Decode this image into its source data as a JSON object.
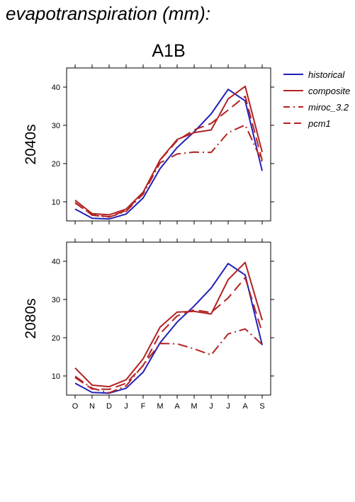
{
  "figure": {
    "title": "evapotranspiration (mm):"
  },
  "colors": {
    "historical": "#2020b8",
    "scenario": "#b22222"
  },
  "chart_data": [
    {
      "type": "line",
      "title": "A1B",
      "row_label": "2040s",
      "categories": [
        "O",
        "N",
        "D",
        "J",
        "F",
        "M",
        "A",
        "M",
        "J",
        "J",
        "A",
        "S"
      ],
      "ylim": [
        5,
        45
      ],
      "yticks": [
        10,
        20,
        30,
        40
      ],
      "grid": false,
      "legend_position": "right",
      "series": [
        {
          "name": "historical",
          "style": "solid",
          "color": "#2020b8",
          "values": [
            8.1,
            5.7,
            5.5,
            6.8,
            11.0,
            18.7,
            24.2,
            28.3,
            33.0,
            39.4,
            36.4,
            18.1
          ]
        },
        {
          "name": "composite",
          "style": "solid",
          "color": "#b22222",
          "values": [
            10.4,
            6.9,
            6.6,
            8.1,
            12.5,
            21.0,
            26.3,
            28.1,
            28.8,
            36.9,
            40.2,
            23.0
          ]
        },
        {
          "name": "miroc_3.2",
          "style": "dashdot",
          "color": "#b22222",
          "values": [
            9.8,
            6.5,
            6.0,
            7.5,
            12.0,
            20.2,
            22.5,
            23.0,
            22.9,
            28.1,
            30.1,
            20.4
          ]
        },
        {
          "name": "pcm1",
          "style": "dash",
          "color": "#b22222",
          "values": [
            9.7,
            6.6,
            6.1,
            7.7,
            12.4,
            20.9,
            26.0,
            28.8,
            30.5,
            34.0,
            37.6,
            20.8
          ]
        }
      ]
    },
    {
      "type": "line",
      "row_label": "2080s",
      "categories": [
        "O",
        "N",
        "D",
        "J",
        "F",
        "M",
        "A",
        "M",
        "J",
        "J",
        "A",
        "S"
      ],
      "ylim": [
        5,
        45
      ],
      "yticks": [
        10,
        20,
        30,
        40
      ],
      "grid": false,
      "series": [
        {
          "name": "historical",
          "style": "solid",
          "color": "#2020b8",
          "values": [
            8.1,
            5.7,
            5.5,
            6.8,
            11.0,
            18.7,
            24.1,
            28.3,
            33.0,
            39.4,
            36.4,
            18.1
          ]
        },
        {
          "name": "composite",
          "style": "solid",
          "color": "#b22222",
          "values": [
            12.1,
            7.6,
            7.2,
            9.0,
            14.5,
            22.8,
            26.7,
            26.9,
            26.2,
            35.2,
            39.7,
            24.6
          ]
        },
        {
          "name": "miroc_3.2",
          "style": "dashdot",
          "color": "#b22222",
          "values": [
            9.9,
            6.8,
            5.6,
            7.4,
            12.8,
            18.5,
            18.4,
            17.1,
            15.5,
            21.0,
            22.3,
            18.2
          ]
        },
        {
          "name": "pcm1",
          "style": "dash",
          "color": "#b22222",
          "values": [
            9.6,
            6.6,
            6.5,
            8.1,
            12.7,
            21.1,
            25.7,
            27.3,
            26.6,
            30.4,
            35.7,
            21.4
          ]
        }
      ]
    }
  ]
}
